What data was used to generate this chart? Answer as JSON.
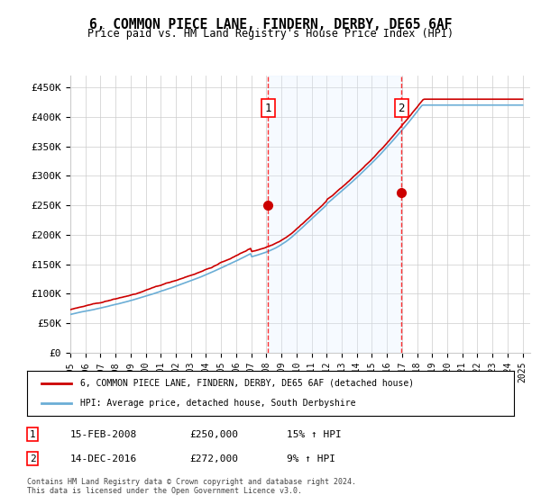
{
  "title": "6, COMMON PIECE LANE, FINDERN, DERBY, DE65 6AF",
  "subtitle": "Price paid vs. HM Land Registry's House Price Index (HPI)",
  "ylabel_ticks": [
    "£0",
    "£50K",
    "£100K",
    "£150K",
    "£200K",
    "£250K",
    "£300K",
    "£350K",
    "£400K",
    "£450K"
  ],
  "ylim": [
    0,
    470000
  ],
  "xlim_start": 1995.0,
  "xlim_end": 2025.5,
  "xticks": [
    1995,
    1996,
    1997,
    1998,
    1999,
    2000,
    2001,
    2002,
    2003,
    2004,
    2005,
    2006,
    2007,
    2008,
    2009,
    2010,
    2011,
    2012,
    2013,
    2014,
    2015,
    2016,
    2017,
    2018,
    2019,
    2020,
    2021,
    2022,
    2023,
    2024,
    2025
  ],
  "hpi_color": "#6baed6",
  "price_color": "#cc0000",
  "sale1_date": 2008.12,
  "sale1_price": 250000,
  "sale1_label": "1",
  "sale2_date": 2016.96,
  "sale2_price": 272000,
  "sale2_label": "2",
  "legend_property": "6, COMMON PIECE LANE, FINDERN, DERBY, DE65 6AF (detached house)",
  "legend_hpi": "HPI: Average price, detached house, South Derbyshire",
  "table_row1": [
    "1",
    "15-FEB-2008",
    "£250,000",
    "15% ↑ HPI"
  ],
  "table_row2": [
    "2",
    "14-DEC-2016",
    "£272,000",
    "9% ↑ HPI"
  ],
  "footer": "Contains HM Land Registry data © Crown copyright and database right 2024.\nThis data is licensed under the Open Government Licence v3.0.",
  "shaded_region_color": "#ddeeff",
  "grid_color": "#cccccc",
  "background_color": "#ffffff"
}
